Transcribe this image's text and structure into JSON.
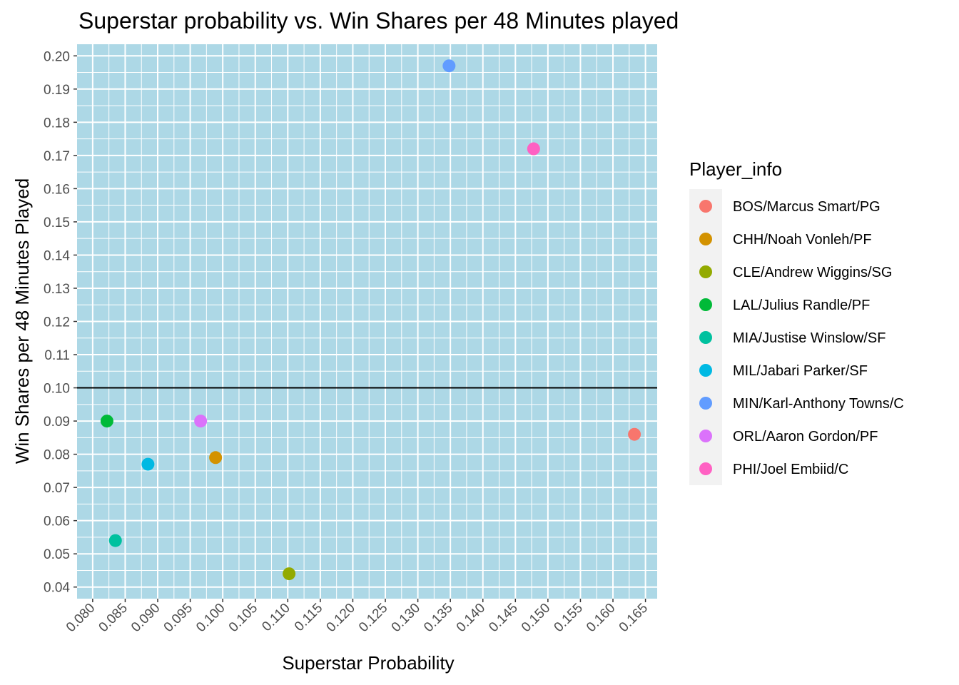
{
  "chart_data": {
    "type": "scatter",
    "title": "Superstar probability vs. Win Shares per 48 Minutes played",
    "xlabel": "Superstar Probability",
    "ylabel": "Win Shares per 48 Minutes Played",
    "xlim": [
      0.0776,
      0.1668
    ],
    "ylim": [
      0.0365,
      0.2035
    ],
    "x_ticks": [
      "0.080",
      "0.085",
      "0.090",
      "0.095",
      "0.100",
      "0.105",
      "0.110",
      "0.115",
      "0.120",
      "0.125",
      "0.130",
      "0.135",
      "0.140",
      "0.145",
      "0.150",
      "0.155",
      "0.160",
      "0.165"
    ],
    "y_ticks": [
      "0.04",
      "0.05",
      "0.06",
      "0.07",
      "0.08",
      "0.09",
      "0.10",
      "0.11",
      "0.12",
      "0.13",
      "0.14",
      "0.15",
      "0.16",
      "0.17",
      "0.18",
      "0.19",
      "0.20"
    ],
    "hline": 0.1,
    "grid": true,
    "panel_background": "#add8e6",
    "legend_position": "right",
    "legend_title": "Player_info",
    "series": [
      {
        "name": "BOS/Marcus Smart/PG",
        "color": "#F8766D",
        "x": 0.1633,
        "y": 0.086
      },
      {
        "name": "CHH/Noah Vonleh/PF",
        "color": "#D39200",
        "x": 0.0989,
        "y": 0.079
      },
      {
        "name": "CLE/Andrew Wiggins/SG",
        "color": "#93AA00",
        "x": 0.1102,
        "y": 0.044
      },
      {
        "name": "LAL/Julius Randle/PF",
        "color": "#00BA38",
        "x": 0.0822,
        "y": 0.09
      },
      {
        "name": "MIA/Justise Winslow/SF",
        "color": "#00C19F",
        "x": 0.0835,
        "y": 0.054
      },
      {
        "name": "MIL/Jabari Parker/SF",
        "color": "#00B9E3",
        "x": 0.0885,
        "y": 0.077
      },
      {
        "name": "MIN/Karl-Anthony Towns/C",
        "color": "#619CFF",
        "x": 0.1348,
        "y": 0.197
      },
      {
        "name": "ORL/Aaron Gordon/PF",
        "color": "#DB72FB",
        "x": 0.0966,
        "y": 0.09
      },
      {
        "name": "PHI/Joel Embiid/C",
        "color": "#FF61C3",
        "x": 0.1478,
        "y": 0.172
      }
    ]
  }
}
